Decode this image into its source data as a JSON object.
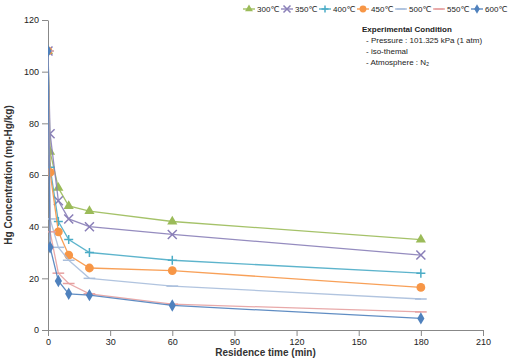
{
  "chart_data": {
    "type": "line",
    "x_label": "Residence time (min)",
    "y_label": "Hg Concentration (mg-Hg/kg)",
    "annotations": [
      "Experimental Condition",
      "- Pressure : 101.325 kPa (1 atm)",
      "- iso-themal",
      "- Atmosphere : N₂"
    ],
    "x": [
      0,
      1,
      5,
      10,
      20,
      60,
      180
    ],
    "series": [
      {
        "name": "300℃",
        "color": "#9bbb59",
        "marker": "triangle",
        "values": [
          108,
          69,
          55,
          48,
          46,
          42,
          35
        ]
      },
      {
        "name": "350℃",
        "color": "#8a7fb8",
        "marker": "x",
        "values": [
          108,
          76,
          50,
          43,
          40,
          37,
          29
        ]
      },
      {
        "name": "400℃",
        "color": "#4bacc6",
        "marker": "plus",
        "values": [
          108,
          63,
          42,
          35,
          30,
          27,
          22
        ]
      },
      {
        "name": "450℃",
        "color": "#f79646",
        "marker": "circle",
        "values": [
          108,
          61,
          38,
          29,
          24,
          23,
          16.5
        ]
      },
      {
        "name": "500℃",
        "color": "#a9bedc",
        "marker": "dash",
        "values": [
          108,
          43,
          32,
          27,
          20,
          17,
          12
        ]
      },
      {
        "name": "550℃",
        "color": "#e6a0a0",
        "marker": "dash",
        "values": [
          108,
          38,
          22,
          18,
          14,
          10,
          7
        ]
      },
      {
        "name": "600℃",
        "color": "#4f81bd",
        "marker": "diamond",
        "values": [
          108,
          32,
          19,
          14,
          13.5,
          9.5,
          4.5
        ]
      }
    ],
    "xlim": [
      0,
      210
    ],
    "xticks": [
      0,
      30,
      60,
      90,
      120,
      150,
      180,
      210
    ],
    "ylim": [
      0,
      120
    ],
    "yticks": [
      0,
      20,
      40,
      60,
      80,
      100,
      120
    ],
    "grid": false,
    "legend": "top right"
  }
}
